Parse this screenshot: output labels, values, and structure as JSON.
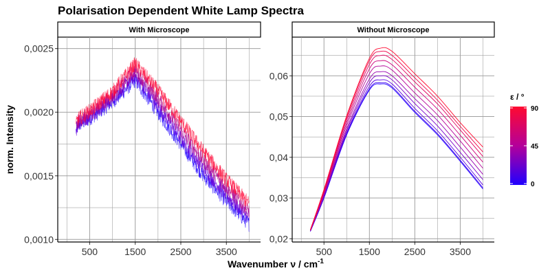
{
  "chart_data": [
    {
      "panel": "With Microscope",
      "type": "line",
      "title": "Polarisation Dependent White Lamp Spectra",
      "xlabel": "Wavenumber ν / cm⁻¹",
      "ylabel": "norm. Intensity",
      "xlim": [
        -200,
        4250
      ],
      "ylim": [
        0.00098,
        0.00259
      ],
      "x_ticks": [
        500,
        1500,
        2500,
        3500
      ],
      "y_ticks": [
        0.001,
        0.0015,
        0.002,
        0.0025
      ],
      "y_tick_labels": [
        "0,0010",
        "0,0015",
        "0,0020",
        "0,0025"
      ],
      "grid": true,
      "series": [
        {
          "epsilon": 0,
          "color": "#2000ff",
          "x": [
            200,
            250,
            500,
            1000,
            1500,
            2000,
            2500,
            3000,
            3500,
            4000
          ],
          "y": [
            0.00185,
            0.0019,
            0.00195,
            0.00208,
            0.00225,
            0.002,
            0.00175,
            0.0015,
            0.0013,
            0.00112
          ]
        },
        {
          "epsilon": 30,
          "color": "#6a00d8",
          "x": [
            200,
            250,
            500,
            1000,
            1500,
            2000,
            2500,
            3000,
            3500,
            4000
          ],
          "y": [
            0.00186,
            0.00191,
            0.00197,
            0.0021,
            0.00229,
            0.00205,
            0.0018,
            0.00156,
            0.00135,
            0.00117
          ]
        },
        {
          "epsilon": 60,
          "color": "#b0008a",
          "x": [
            200,
            250,
            500,
            1000,
            1500,
            2000,
            2500,
            3000,
            3500,
            4000
          ],
          "y": [
            0.00188,
            0.00193,
            0.00199,
            0.00213,
            0.00233,
            0.00211,
            0.00186,
            0.00162,
            0.00141,
            0.00122
          ]
        },
        {
          "epsilon": 90,
          "color": "#ff0a3a",
          "x": [
            200,
            250,
            500,
            1000,
            1500,
            2000,
            2500,
            3000,
            3500,
            4000
          ],
          "y": [
            0.0019,
            0.00195,
            0.00201,
            0.00216,
            0.00238,
            0.00217,
            0.00193,
            0.00169,
            0.00147,
            0.00128
          ]
        }
      ]
    },
    {
      "panel": "Without Microscope",
      "type": "line",
      "xlabel": "Wavenumber ν / cm⁻¹",
      "xlim": [
        -200,
        4250
      ],
      "ylim": [
        0.0192,
        0.0695
      ],
      "x_ticks": [
        500,
        1500,
        2500,
        3500
      ],
      "y_ticks": [
        0.02,
        0.03,
        0.04,
        0.05,
        0.06
      ],
      "y_tick_labels": [
        "0,02",
        "0,03",
        "0,04",
        "0,05",
        "0,06"
      ],
      "grid": true,
      "series": [
        {
          "epsilon": 0,
          "color": "#2000ff",
          "x": [
            200,
            500,
            1000,
            1500,
            1750,
            2000,
            2500,
            3000,
            3500,
            4000
          ],
          "y": [
            0.0218,
            0.03,
            0.0455,
            0.0565,
            0.058,
            0.057,
            0.051,
            0.0455,
            0.039,
            0.0322
          ]
        },
        {
          "epsilon": 10,
          "color": "#3c00f0",
          "x": [
            200,
            500,
            1000,
            1500,
            1750,
            2000,
            2500,
            3000,
            3500,
            4000
          ],
          "y": [
            0.0218,
            0.0301,
            0.0457,
            0.0568,
            0.0583,
            0.0573,
            0.0513,
            0.0458,
            0.0393,
            0.0325
          ]
        },
        {
          "epsilon": 20,
          "color": "#5a00e0",
          "x": [
            200,
            500,
            1000,
            1500,
            1750,
            2000,
            2500,
            3000,
            3500,
            4000
          ],
          "y": [
            0.0219,
            0.0303,
            0.046,
            0.0574,
            0.059,
            0.058,
            0.052,
            0.0465,
            0.04,
            0.0332
          ]
        },
        {
          "epsilon": 30,
          "color": "#7a00c8",
          "x": [
            200,
            500,
            1000,
            1500,
            1750,
            2000,
            2500,
            3000,
            3500,
            4000
          ],
          "y": [
            0.0219,
            0.0305,
            0.0465,
            0.0583,
            0.06,
            0.059,
            0.0532,
            0.0477,
            0.0412,
            0.0345
          ]
        },
        {
          "epsilon": 40,
          "color": "#9800b0",
          "x": [
            200,
            500,
            1000,
            1500,
            1750,
            2000,
            2500,
            3000,
            3500,
            4000
          ],
          "y": [
            0.022,
            0.0307,
            0.047,
            0.0592,
            0.061,
            0.06,
            0.0544,
            0.049,
            0.0425,
            0.0358
          ]
        },
        {
          "epsilon": 50,
          "color": "#b40098",
          "x": [
            200,
            500,
            1000,
            1500,
            1750,
            2000,
            2500,
            3000,
            3500,
            4000
          ],
          "y": [
            0.022,
            0.031,
            0.0478,
            0.0605,
            0.0624,
            0.0614,
            0.0558,
            0.0504,
            0.044,
            0.0373
          ]
        },
        {
          "epsilon": 60,
          "color": "#cc007c",
          "x": [
            200,
            500,
            1000,
            1500,
            1750,
            2000,
            2500,
            3000,
            3500,
            4000
          ],
          "y": [
            0.0221,
            0.0313,
            0.0485,
            0.0617,
            0.0637,
            0.0627,
            0.0572,
            0.0518,
            0.0454,
            0.0388
          ]
        },
        {
          "epsilon": 70,
          "color": "#e0005e",
          "x": [
            200,
            500,
            1000,
            1500,
            1750,
            2000,
            2500,
            3000,
            3500,
            4000
          ],
          "y": [
            0.0221,
            0.0316,
            0.0492,
            0.0628,
            0.065,
            0.064,
            0.0585,
            0.0531,
            0.0467,
            0.0402
          ]
        },
        {
          "epsilon": 80,
          "color": "#f00048",
          "x": [
            200,
            500,
            1000,
            1500,
            1750,
            2000,
            2500,
            3000,
            3500,
            4000
          ],
          "y": [
            0.0222,
            0.0319,
            0.0498,
            0.0637,
            0.066,
            0.065,
            0.0595,
            0.054,
            0.0476,
            0.0413
          ]
        },
        {
          "epsilon": 90,
          "color": "#ff0a30",
          "x": [
            200,
            500,
            1000,
            1500,
            1750,
            2000,
            2500,
            3000,
            3500,
            4000
          ],
          "y": [
            0.0222,
            0.0321,
            0.0502,
            0.0643,
            0.0668,
            0.066,
            0.0605,
            0.055,
            0.0485,
            0.0425
          ]
        }
      ]
    }
  ],
  "figure": {
    "title": "Polarisation Dependent White Lamp Spectra",
    "xlabel_main": "Wavenumber ν / cm",
    "xlabel_sup": "-1",
    "ylabel": "norm. Intensity"
  },
  "legend": {
    "title": "ε / °",
    "labels": [
      "90",
      "45",
      "0"
    ],
    "color_high": "#ff0a30",
    "color_mid": "#b4009a",
    "color_low": "#2000ff"
  },
  "colors": {
    "grid": "#a0a0a0",
    "panel_border": "#000000"
  }
}
